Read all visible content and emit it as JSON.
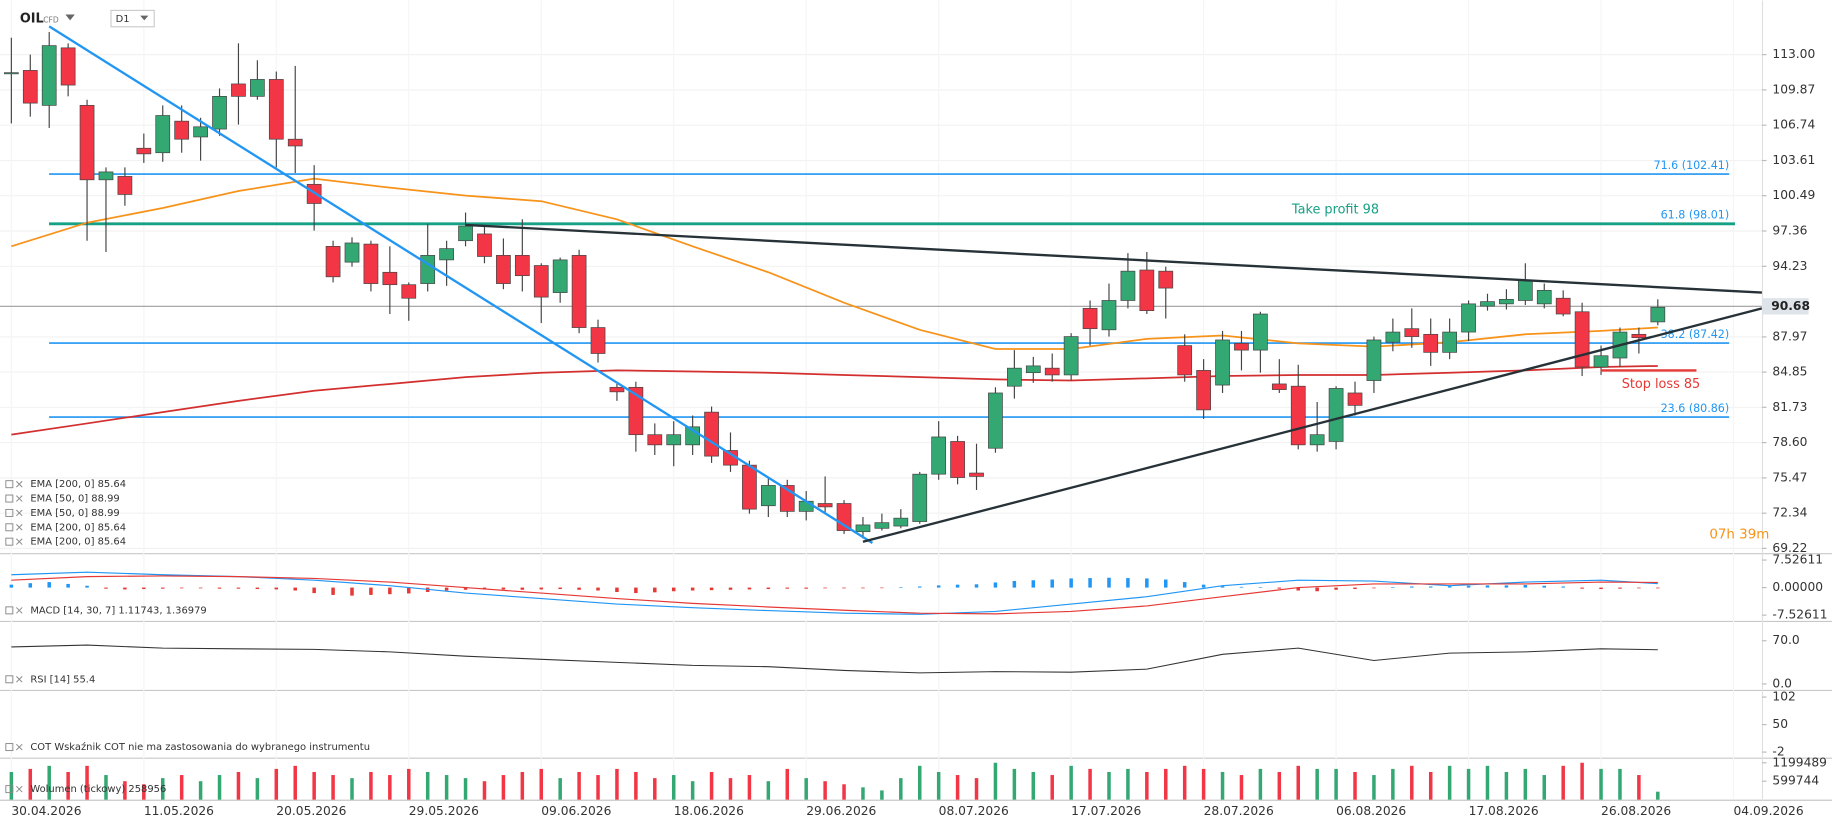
{
  "chart_data": [
    {
      "type": "candlestick",
      "title": "OIL",
      "subtitle": "CFD",
      "timeframe": "D1",
      "open": [
        111.3,
        111.6,
        108.5,
        113.6,
        108.5,
        101.9,
        102.2,
        104.7,
        104.3,
        107.1,
        105.7,
        106.4,
        110.4,
        109.3,
        110.8,
        105.5,
        101.5,
        96,
        94.6,
        96.2,
        93.7,
        92.6,
        92.7,
        94.8,
        96.5,
        97.1,
        95.2,
        95.2,
        94.3,
        91.9,
        95.2,
        88.8,
        83.5,
        83.5,
        79.3,
        78.4,
        78.4,
        81.3,
        77.9,
        76.6,
        73,
        74.8,
        72.5,
        73.2,
        73.2,
        70.7,
        71,
        71.2,
        71.6,
        75.8,
        78.7,
        75.9,
        78.1,
        83.6,
        84.8,
        85.2,
        84.6,
        90.5,
        88.6,
        91.2,
        93.9,
        93.8,
        87.2,
        85,
        83.7,
        87.4,
        86.8,
        83.8,
        83.6,
        78.4,
        78.7,
        83,
        84.1,
        87.5,
        88.7,
        88.2,
        86.6,
        88.4,
        90.7,
        90.9,
        91.2,
        90.9,
        91.4,
        90.2,
        85.3,
        86.1,
        88.2,
        89.3
      ],
      "high": [
        114.5,
        113,
        115,
        114,
        109,
        103,
        103,
        106,
        108.5,
        108.5,
        107.4,
        110,
        114,
        112.5,
        111.5,
        112,
        103.2,
        96.5,
        96.8,
        96.5,
        96,
        92.8,
        98,
        96.5,
        99,
        97.8,
        96.7,
        98.4,
        94.5,
        95,
        95.7,
        89.5,
        83.8,
        84,
        80.3,
        80.5,
        81,
        81.8,
        79.5,
        77,
        75.5,
        75.3,
        74.3,
        75.6,
        73.5,
        72,
        72.3,
        72.7,
        76,
        80.5,
        79.2,
        78.5,
        83.5,
        86.8,
        86.2,
        86.5,
        88.3,
        91.2,
        92.7,
        95.4,
        95.5,
        94.2,
        88.2,
        86,
        88.5,
        88.5,
        90.2,
        86,
        85.5,
        82.2,
        83.6,
        84,
        88,
        89.6,
        90.5,
        89.6,
        89.6,
        91.2,
        91.8,
        92.2,
        94.5,
        92.7,
        92.1,
        91,
        87.2,
        88.8,
        88.8,
        91.3
      ],
      "low": [
        106.9,
        107.5,
        106.5,
        109.3,
        96.5,
        95.5,
        99.6,
        103.4,
        103.5,
        104.3,
        103.6,
        105.8,
        106.8,
        109,
        103,
        102.5,
        97.4,
        92.8,
        94.2,
        92,
        90,
        89.4,
        92,
        92.5,
        96,
        94.5,
        92.2,
        92,
        89.2,
        91,
        88.3,
        85.7,
        82.3,
        77.8,
        77.5,
        76.5,
        77.5,
        76.8,
        76,
        72.3,
        72,
        72,
        71.7,
        72.4,
        70.5,
        70.1,
        70.8,
        71,
        71.4,
        75.3,
        74.9,
        74.4,
        77.7,
        82.5,
        83.9,
        84,
        84.1,
        87.2,
        88,
        90.5,
        90,
        89.6,
        84,
        80.7,
        83,
        85,
        84.8,
        83,
        78,
        77.8,
        78,
        81,
        83,
        86.7,
        87,
        85.4,
        86,
        87.6,
        90.3,
        90.4,
        90.8,
        90.5,
        89.8,
        84.5,
        84.6,
        85.3,
        86.5,
        89
      ],
      "close": [
        111.4,
        108.7,
        113.8,
        110.3,
        101.9,
        102.6,
        100.6,
        104.2,
        107.6,
        105.5,
        106.6,
        109.3,
        109.3,
        110.8,
        105.5,
        104.9,
        99.8,
        93.3,
        96.3,
        92.7,
        92.6,
        91.4,
        95.2,
        95.8,
        97.8,
        95.1,
        92.7,
        93.4,
        91.5,
        94.8,
        88.8,
        86.5,
        83.1,
        79.3,
        78.4,
        79.3,
        80,
        77.4,
        76.6,
        72.7,
        74.8,
        72.5,
        73.4,
        72.9,
        70.8,
        71.3,
        71.5,
        71.9,
        75.8,
        79.1,
        75.5,
        75.6,
        83,
        85.2,
        85.4,
        84.6,
        88,
        88.7,
        91.2,
        93.8,
        90.3,
        92.3,
        84.6,
        81.5,
        87.7,
        86.8,
        90,
        83.3,
        78.4,
        79.3,
        83.4,
        81.9,
        87.7,
        88.4,
        88,
        86.6,
        88.4,
        90.9,
        91.1,
        91.3,
        93,
        92.1,
        90,
        85.3,
        86.3,
        88.4,
        87.9,
        90.6
      ],
      "up_color": "#33a873",
      "down_color": "#f23645",
      "lines": [
        {
          "color": "#f7931a",
          "x": [
            0,
            4,
            8,
            12,
            16,
            20,
            24,
            28,
            32,
            36,
            40,
            44,
            48,
            52,
            56,
            60,
            64,
            68,
            72,
            76,
            80,
            84,
            87
          ],
          "values": [
            96.0,
            98.1,
            99.4,
            100.9,
            102.0,
            101.2,
            100.5,
            100.0,
            98.4,
            96.0,
            93.7,
            91.0,
            88.6,
            86.9,
            86.9,
            87.8,
            88.1,
            87.4,
            87.1,
            87.5,
            88.2,
            88.5,
            88.8
          ]
        },
        {
          "color": "#d32f2f",
          "x": [
            0,
            4,
            8,
            12,
            16,
            20,
            24,
            28,
            32,
            36,
            40,
            44,
            48,
            52,
            56,
            60,
            64,
            68,
            72,
            76,
            80,
            84,
            87
          ],
          "values": [
            79.3,
            80.3,
            81.3,
            82.3,
            83.2,
            83.8,
            84.4,
            84.8,
            85.0,
            84.9,
            84.8,
            84.6,
            84.4,
            84.2,
            84.1,
            84.3,
            84.5,
            84.6,
            84.6,
            84.8,
            85.0,
            85.3,
            85.4
          ]
        }
      ],
      "legend": [
        "EMA [200, 0] 85.64",
        "EMA [50, 0] 88.99",
        "EMA [50, 0] 88.99",
        "EMA [200, 0] 85.64",
        "EMA [200, 0] 85.64"
      ],
      "levels": [
        {
          "value": 102.41,
          "label": "71.6 (102.41)",
          "color": "#2196f3"
        },
        {
          "value": 98.01,
          "label": "61.8 (98.01)",
          "color": "#2196f3"
        },
        {
          "value": 87.42,
          "label": "38.2 (87.42)",
          "color": "#2196f3"
        },
        {
          "value": 80.86,
          "label": "23.6 (80.86)",
          "color": "#2196f3"
        }
      ],
      "take_profit": {
        "value": 98,
        "label": "Take profit 98",
        "color": "#16a085"
      },
      "stop_loss": {
        "value": 85,
        "label": "Stop loss 85",
        "color": "#e53935"
      },
      "drawings": [
        {
          "color": "#2196f3",
          "x": [
            2,
            45.5
          ],
          "y": [
            115.5,
            69.7
          ]
        },
        {
          "color": "#263238",
          "x": [
            24,
            92.5
          ],
          "y": [
            97.9,
            91.9
          ]
        },
        {
          "color": "#263238",
          "x": [
            45,
            92.5
          ],
          "y": [
            69.8,
            90.5
          ]
        }
      ],
      "current_price": 90.68,
      "countdown": "07h 39m",
      "xlim": [
        -0.6,
        92.5
      ],
      "xticks": [
        {
          "value": 0,
          "label": "30.04.2026"
        },
        {
          "value": 7,
          "label": "11.05.2026"
        },
        {
          "value": 14,
          "label": "20.05.2026"
        },
        {
          "value": 21,
          "label": "29.05.2026"
        },
        {
          "value": 28,
          "label": "09.06.2026"
        },
        {
          "value": 35,
          "label": "18.06.2026"
        },
        {
          "value": 42,
          "label": "29.06.2026"
        },
        {
          "value": 49,
          "label": "08.07.2026"
        },
        {
          "value": 56,
          "label": "17.07.2026"
        },
        {
          "value": 63,
          "label": "28.07.2026"
        },
        {
          "value": 70,
          "label": "06.08.2026"
        },
        {
          "value": 77,
          "label": "17.08.2026"
        },
        {
          "value": 84,
          "label": "26.08.2026"
        },
        {
          "value": 91,
          "label": "04.09.2026"
        }
      ],
      "ylim": [
        68.8,
        117.8
      ],
      "yticks": [
        {
          "value": 113,
          "label": "113.00"
        },
        {
          "value": 109.87,
          "label": "109.87"
        },
        {
          "value": 106.74,
          "label": "106.74"
        },
        {
          "value": 103.61,
          "label": "103.61"
        },
        {
          "value": 100.49,
          "label": "100.49"
        },
        {
          "value": 97.36,
          "label": "97.36"
        },
        {
          "value": 94.23,
          "label": "94.23"
        },
        {
          "value": 87.97,
          "label": "87.97"
        },
        {
          "value": 84.85,
          "label": "84.85"
        },
        {
          "value": 81.73,
          "label": "81.73"
        },
        {
          "value": 78.6,
          "label": "78.60"
        },
        {
          "value": 75.47,
          "label": "75.47"
        },
        {
          "value": 72.34,
          "label": "72.34"
        },
        {
          "value": 69.22,
          "label": "69.22"
        }
      ],
      "grid": true
    },
    {
      "type": "macd",
      "label": "MACD [14, 30, 7] 1.11743, 1.36979",
      "histogram": [
        0.8,
        1.2,
        1.5,
        1.0,
        0.5,
        -0.3,
        -0.5,
        -0.4,
        -0.3,
        -0.2,
        -0.2,
        -0.3,
        -0.3,
        -0.4,
        -0.5,
        -0.8,
        -1.5,
        -2.0,
        -2.2,
        -2.0,
        -1.8,
        -1.6,
        -1.2,
        -0.8,
        -0.6,
        -0.5,
        -0.5,
        -0.6,
        -0.5,
        -0.4,
        -0.6,
        -0.8,
        -1.2,
        -1.5,
        -1.3,
        -1.0,
        -0.8,
        -0.7,
        -0.6,
        -0.5,
        -0.4,
        -0.3,
        -0.3,
        -0.2,
        -0.2,
        -0.2,
        -0.1,
        0.1,
        0.3,
        0.6,
        0.8,
        0.9,
        1.4,
        1.8,
        2.0,
        2.2,
        2.5,
        2.6,
        2.7,
        2.6,
        2.5,
        2.2,
        1.5,
        0.8,
        0.4,
        0.2,
        0.1,
        -0.3,
        -0.8,
        -1.0,
        -0.6,
        -0.4,
        -0.2,
        0.1,
        0.3,
        0.3,
        0.4,
        0.5,
        0.6,
        0.6,
        0.7,
        0.5,
        0.3,
        -0.3,
        -0.4,
        -0.3,
        -0.2,
        -0.2
      ],
      "positive_color": "#2196f3",
      "negative_color": "#e53935",
      "x": [
        0,
        4,
        8,
        12,
        16,
        20,
        24,
        28,
        32,
        36,
        40,
        44,
        48,
        52,
        56,
        60,
        64,
        68,
        72,
        76,
        80,
        84,
        87
      ],
      "series": [
        {
          "color": "#2196f3",
          "values": [
            3.5,
            4.2,
            3.5,
            3.0,
            2.0,
            0.5,
            -1.5,
            -3.0,
            -4.5,
            -5.5,
            -6.3,
            -7.0,
            -7.3,
            -6.5,
            -4.5,
            -2.5,
            0.5,
            2.0,
            1.8,
            0.5,
            1.5,
            2.0,
            1.1
          ]
        },
        {
          "color": "#e53935",
          "values": [
            2.0,
            3.0,
            3.2,
            3.0,
            2.5,
            1.5,
            0.0,
            -1.5,
            -3.0,
            -4.3,
            -5.3,
            -6.2,
            -7.0,
            -7.2,
            -6.5,
            -5.0,
            -2.5,
            0.0,
            1.0,
            1.0,
            1.0,
            1.5,
            1.4
          ]
        }
      ],
      "ylim": [
        -9.1,
        9.1
      ],
      "yticks": [
        7.52611,
        {
          "value": 0,
          "label": "0.00000"
        },
        -7.52611
      ]
    },
    {
      "type": "line",
      "label": "RSI [14] 55.4",
      "x": [
        0,
        4,
        8,
        12,
        16,
        20,
        24,
        28,
        32,
        36,
        40,
        44,
        48,
        52,
        56,
        60,
        64,
        68,
        72,
        76,
        80,
        84,
        87
      ],
      "series": [
        {
          "color": "#333333",
          "values": [
            60,
            63,
            58,
            57,
            56,
            52,
            45,
            40,
            35,
            30,
            28,
            22,
            18,
            20,
            19,
            24,
            48,
            58,
            38,
            50,
            52,
            57,
            55.4
          ]
        }
      ],
      "ylim": [
        -9.5,
        100.3
      ],
      "yticks": [
        {
          "value": 70,
          "label": "70.0"
        },
        {
          "value": 0,
          "label": "0.0"
        }
      ]
    },
    {
      "type": "note",
      "label": "COT Wskaźnik COT nie ma zastosowania do wybranego instrumentu",
      "ylim": [
        -12.4,
        113.5
      ],
      "yticks": [
        102,
        50,
        -2
      ]
    },
    {
      "type": "bar",
      "label": "Wolumen (tickowy) 258956",
      "values": [
        900000,
        1000000,
        1100000,
        900000,
        1100000,
        800000,
        600000,
        500000,
        700000,
        800000,
        600000,
        800000,
        900000,
        700000,
        1000000,
        1100000,
        900000,
        800000,
        700000,
        900000,
        800000,
        1000000,
        900000,
        800000,
        700000,
        600000,
        800000,
        900000,
        1000000,
        700000,
        900000,
        800000,
        1000000,
        900000,
        700000,
        800000,
        600000,
        900000,
        700000,
        800000,
        600000,
        1000000,
        700000,
        600000,
        500000,
        400000,
        300000,
        700000,
        1100000,
        900000,
        800000,
        700000,
        1200000,
        1000000,
        900000,
        800000,
        1100000,
        1000000,
        900000,
        1000000,
        900000,
        1000000,
        1100000,
        1000000,
        900000,
        800000,
        1000000,
        900000,
        1100000,
        1000000,
        1000000,
        900000,
        800000,
        1000000,
        1100000,
        900000,
        1100000,
        1000000,
        1100000,
        900000,
        1000000,
        800000,
        1100000,
        1200000,
        1000000,
        1000000,
        800000,
        258956
      ],
      "ylim": [
        0,
        1330000
      ],
      "yticks": [
        1199489,
        599744
      ]
    }
  ]
}
